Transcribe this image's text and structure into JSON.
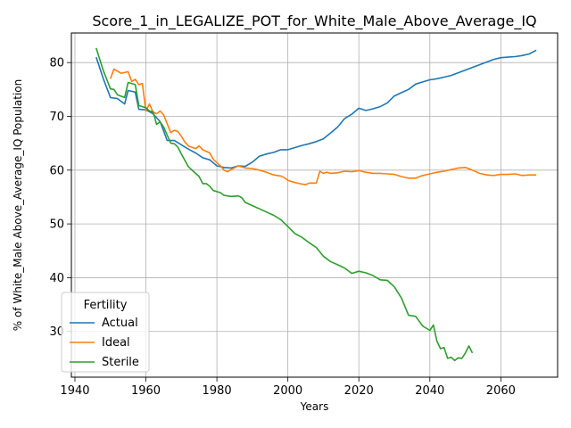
{
  "chart_data": {
    "type": "line",
    "title": "Score_1_in_LEGALIZE_POT_for_White_Male_Above_Average_IQ",
    "xlabel": "Years",
    "ylabel": "% of White_Male Above_Average_IQ Population",
    "xlim": [
      1939,
      2076
    ],
    "ylim": [
      21.5,
      85.5
    ],
    "x_ticks": [
      1940,
      1960,
      1980,
      2000,
      2020,
      2040,
      2060
    ],
    "y_ticks": [
      30,
      40,
      50,
      60,
      70,
      80
    ],
    "grid": true,
    "legend": {
      "title": "Fertility",
      "placement": "lower-left"
    },
    "series": [
      {
        "name": "Actual",
        "color": "#1f77b4",
        "points": [
          [
            1946,
            81.0
          ],
          [
            1948,
            77.0
          ],
          [
            1950,
            73.5
          ],
          [
            1952,
            73.3
          ],
          [
            1954,
            72.3
          ],
          [
            1955,
            74.8
          ],
          [
            1957,
            74.5
          ],
          [
            1958,
            71.3
          ],
          [
            1960,
            71.2
          ],
          [
            1962,
            70.5
          ],
          [
            1964,
            69.0
          ],
          [
            1966,
            65.5
          ],
          [
            1968,
            65.5
          ],
          [
            1970,
            64.7
          ],
          [
            1972,
            63.9
          ],
          [
            1974,
            63.2
          ],
          [
            1976,
            62.3
          ],
          [
            1978,
            61.9
          ],
          [
            1980,
            60.8
          ],
          [
            1982,
            60.5
          ],
          [
            1984,
            60.4
          ],
          [
            1986,
            60.8
          ],
          [
            1988,
            60.7
          ],
          [
            1990,
            61.5
          ],
          [
            1992,
            62.6
          ],
          [
            1994,
            63.0
          ],
          [
            1996,
            63.3
          ],
          [
            1998,
            63.8
          ],
          [
            2000,
            63.8
          ],
          [
            2002,
            64.2
          ],
          [
            2004,
            64.6
          ],
          [
            2006,
            64.9
          ],
          [
            2008,
            65.3
          ],
          [
            2010,
            65.8
          ],
          [
            2012,
            66.9
          ],
          [
            2014,
            68.0
          ],
          [
            2016,
            69.6
          ],
          [
            2018,
            70.4
          ],
          [
            2020,
            71.5
          ],
          [
            2022,
            71.1
          ],
          [
            2024,
            71.4
          ],
          [
            2026,
            71.8
          ],
          [
            2028,
            72.5
          ],
          [
            2030,
            73.8
          ],
          [
            2032,
            74.4
          ],
          [
            2034,
            75.0
          ],
          [
            2036,
            76.0
          ],
          [
            2038,
            76.4
          ],
          [
            2040,
            76.8
          ],
          [
            2042,
            77.0
          ],
          [
            2044,
            77.3
          ],
          [
            2046,
            77.6
          ],
          [
            2048,
            78.1
          ],
          [
            2050,
            78.6
          ],
          [
            2052,
            79.1
          ],
          [
            2054,
            79.6
          ],
          [
            2056,
            80.1
          ],
          [
            2058,
            80.6
          ],
          [
            2060,
            80.9
          ],
          [
            2062,
            81.0
          ],
          [
            2064,
            81.1
          ],
          [
            2066,
            81.3
          ],
          [
            2068,
            81.6
          ],
          [
            2070,
            82.3
          ]
        ]
      },
      {
        "name": "Ideal",
        "color": "#ff7f0e",
        "points": [
          [
            1950,
            77.0
          ],
          [
            1951,
            78.8
          ],
          [
            1953,
            78.0
          ],
          [
            1955,
            78.3
          ],
          [
            1956,
            76.5
          ],
          [
            1957,
            76.9
          ],
          [
            1958,
            75.9
          ],
          [
            1959,
            76.1
          ],
          [
            1960,
            71.0
          ],
          [
            1961,
            72.3
          ],
          [
            1962,
            70.8
          ],
          [
            1963,
            70.5
          ],
          [
            1964,
            71.0
          ],
          [
            1965,
            70.3
          ],
          [
            1966,
            68.6
          ],
          [
            1967,
            67.0
          ],
          [
            1968,
            67.4
          ],
          [
            1969,
            67.2
          ],
          [
            1970,
            66.3
          ],
          [
            1971,
            65.2
          ],
          [
            1972,
            64.5
          ],
          [
            1974,
            64.0
          ],
          [
            1975,
            64.5
          ],
          [
            1976,
            63.8
          ],
          [
            1978,
            63.2
          ],
          [
            1979,
            62.0
          ],
          [
            1981,
            60.8
          ],
          [
            1982,
            60.0
          ],
          [
            1983,
            59.7
          ],
          [
            1984,
            60.1
          ],
          [
            1986,
            60.8
          ],
          [
            1988,
            60.4
          ],
          [
            1990,
            60.3
          ],
          [
            1992,
            60.0
          ],
          [
            1994,
            59.6
          ],
          [
            1996,
            59.1
          ],
          [
            1998,
            58.9
          ],
          [
            1999,
            58.6
          ],
          [
            2000,
            58.1
          ],
          [
            2002,
            57.7
          ],
          [
            2004,
            57.4
          ],
          [
            2005,
            57.3
          ],
          [
            2006,
            57.6
          ],
          [
            2008,
            57.6
          ],
          [
            2009,
            59.8
          ],
          [
            2010,
            59.4
          ],
          [
            2011,
            59.6
          ],
          [
            2012,
            59.4
          ],
          [
            2014,
            59.5
          ],
          [
            2016,
            59.8
          ],
          [
            2018,
            59.7
          ],
          [
            2020,
            59.9
          ],
          [
            2022,
            59.6
          ],
          [
            2024,
            59.4
          ],
          [
            2026,
            59.4
          ],
          [
            2028,
            59.3
          ],
          [
            2030,
            59.2
          ],
          [
            2032,
            58.8
          ],
          [
            2034,
            58.5
          ],
          [
            2036,
            58.5
          ],
          [
            2038,
            59.0
          ],
          [
            2040,
            59.3
          ],
          [
            2042,
            59.6
          ],
          [
            2044,
            59.8
          ],
          [
            2046,
            60.1
          ],
          [
            2048,
            60.4
          ],
          [
            2050,
            60.5
          ],
          [
            2052,
            60.0
          ],
          [
            2054,
            59.4
          ],
          [
            2056,
            59.1
          ],
          [
            2058,
            59.0
          ],
          [
            2060,
            59.2
          ],
          [
            2062,
            59.2
          ],
          [
            2064,
            59.3
          ],
          [
            2066,
            59.0
          ],
          [
            2068,
            59.1
          ],
          [
            2070,
            59.1
          ]
        ]
      },
      {
        "name": "Sterile",
        "color": "#2ca02c",
        "points": [
          [
            1946,
            82.7
          ],
          [
            1948,
            78.5
          ],
          [
            1950,
            75.1
          ],
          [
            1951,
            75.0
          ],
          [
            1952,
            74.0
          ],
          [
            1954,
            73.5
          ],
          [
            1955,
            76.3
          ],
          [
            1957,
            75.9
          ],
          [
            1958,
            72.0
          ],
          [
            1960,
            71.6
          ],
          [
            1961,
            71.0
          ],
          [
            1962,
            70.9
          ],
          [
            1963,
            68.5
          ],
          [
            1964,
            69.0
          ],
          [
            1965,
            68.0
          ],
          [
            1966,
            66.5
          ],
          [
            1967,
            65.0
          ],
          [
            1968,
            64.9
          ],
          [
            1969,
            64.3
          ],
          [
            1970,
            63.0
          ],
          [
            1972,
            60.6
          ],
          [
            1974,
            59.4
          ],
          [
            1975,
            58.8
          ],
          [
            1976,
            57.5
          ],
          [
            1977,
            57.5
          ],
          [
            1978,
            57.0
          ],
          [
            1979,
            56.2
          ],
          [
            1981,
            55.8
          ],
          [
            1982,
            55.3
          ],
          [
            1984,
            55.1
          ],
          [
            1986,
            55.2
          ],
          [
            1987,
            54.9
          ],
          [
            1988,
            54.0
          ],
          [
            1990,
            53.4
          ],
          [
            1992,
            52.8
          ],
          [
            1994,
            52.2
          ],
          [
            1996,
            51.6
          ],
          [
            1998,
            50.8
          ],
          [
            2000,
            49.5
          ],
          [
            2002,
            48.2
          ],
          [
            2004,
            47.5
          ],
          [
            2006,
            46.5
          ],
          [
            2008,
            45.6
          ],
          [
            2010,
            44.0
          ],
          [
            2012,
            43.0
          ],
          [
            2014,
            42.4
          ],
          [
            2016,
            41.8
          ],
          [
            2018,
            40.8
          ],
          [
            2020,
            41.2
          ],
          [
            2022,
            40.9
          ],
          [
            2024,
            40.4
          ],
          [
            2026,
            39.6
          ],
          [
            2028,
            39.5
          ],
          [
            2030,
            38.3
          ],
          [
            2032,
            36.2
          ],
          [
            2034,
            33.0
          ],
          [
            2036,
            32.8
          ],
          [
            2038,
            31.0
          ],
          [
            2040,
            30.2
          ],
          [
            2041,
            31.2
          ],
          [
            2042,
            28.2
          ],
          [
            2043,
            26.8
          ],
          [
            2044,
            27.0
          ],
          [
            2045,
            25.0
          ],
          [
            2046,
            25.2
          ],
          [
            2047,
            24.6
          ],
          [
            2048,
            25.1
          ],
          [
            2049,
            25.0
          ],
          [
            2050,
            26.0
          ],
          [
            2051,
            27.3
          ],
          [
            2052,
            26.0
          ]
        ]
      }
    ]
  }
}
